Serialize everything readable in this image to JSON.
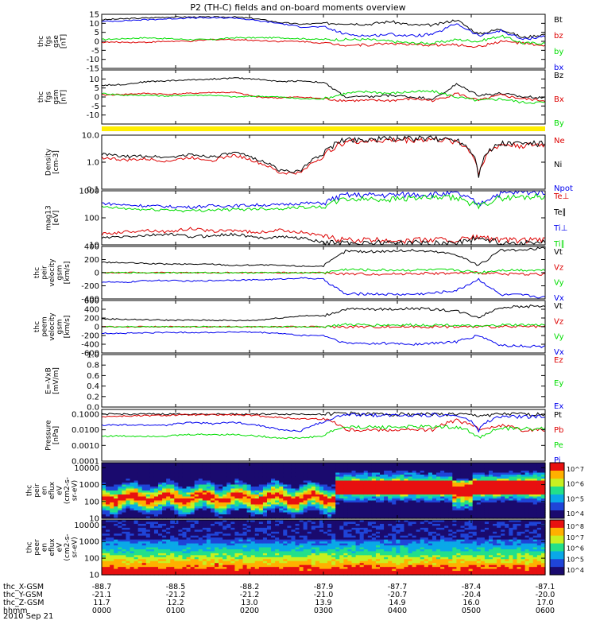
{
  "title": "P2 (TH-C) fields and on-board moments overview",
  "date": "2010 Sep 21",
  "colors": {
    "black": "#000000",
    "red": "#dd0000",
    "green": "#00dd00",
    "blue": "#0000ee",
    "yellow": "#ffee00"
  },
  "chart_data": [
    {
      "type": "line",
      "id": "fgs_gse",
      "ylabel": [
        "thc",
        "fgs",
        "gse",
        "[nT]"
      ],
      "ylim": [
        -15,
        15
      ],
      "yticks": [
        15,
        10,
        5,
        0,
        -5,
        -10,
        -15
      ],
      "tick_labels": [
        "15",
        "10",
        "5",
        "0",
        "-5",
        "-10",
        "-15"
      ],
      "series": [
        {
          "name": "Bt",
          "color": "black",
          "values": [
            12,
            12.5,
            13,
            13.5,
            13.5,
            13.5,
            13.5,
            12.5,
            10.5,
            9.5,
            10,
            10,
            9.5,
            11,
            9,
            9,
            12,
            4,
            7,
            2,
            4
          ]
        },
        {
          "name": "bz",
          "color": "red",
          "values": [
            -0.5,
            -0.5,
            -0.5,
            0,
            0,
            1,
            1,
            0.5,
            0,
            0,
            -1,
            -2,
            -2,
            -1,
            -2,
            -2,
            -2,
            -3,
            0,
            -1,
            -3
          ]
        },
        {
          "name": "by",
          "color": "green",
          "values": [
            1,
            1.5,
            2,
            1.5,
            1,
            1,
            2,
            2,
            2,
            1.5,
            1,
            1,
            1,
            0,
            -1,
            -1,
            1,
            0,
            3,
            -1,
            -1
          ]
        },
        {
          "name": "bx",
          "color": "blue",
          "values": [
            11,
            11.5,
            12,
            12.5,
            13,
            13,
            13,
            11.5,
            10,
            8,
            8,
            4,
            3,
            4,
            3,
            4,
            10,
            3,
            6,
            1,
            3
          ]
        }
      ]
    },
    {
      "type": "line",
      "id": "fgs_gsm",
      "ylabel": [
        "thc",
        "fgs",
        "gsm",
        "[nT]"
      ],
      "ylim": [
        -15,
        15
      ],
      "yticks": [
        10,
        5,
        0,
        -5,
        -10
      ],
      "tick_labels": [
        "10",
        "5",
        "0",
        "-5",
        "-10"
      ],
      "series": [
        {
          "name": "Bz",
          "color": "black",
          "values": [
            6.5,
            7,
            8.5,
            9,
            9.5,
            10,
            10.5,
            10,
            8.5,
            9,
            8,
            0,
            0,
            1,
            0,
            -1,
            7,
            1,
            2,
            0,
            0
          ]
        },
        {
          "name": "Bx",
          "color": "red",
          "values": [
            1,
            1.5,
            2,
            1.5,
            2,
            2.5,
            2.5,
            0,
            -0.5,
            0,
            -1,
            -2,
            -2,
            -2,
            -1,
            -2,
            2,
            -2,
            1,
            -1,
            -2
          ]
        },
        {
          "name": "By",
          "color": "green",
          "values": [
            2,
            1,
            1,
            0.5,
            1,
            1,
            0,
            0.5,
            0,
            -1,
            -1,
            2,
            3,
            2,
            3,
            3,
            0,
            -2,
            -1,
            -3,
            -3
          ]
        }
      ]
    },
    {
      "type": "line",
      "id": "density",
      "ylabel": [
        "Density",
        "[cm-3]"
      ],
      "ylim": [
        0.1,
        10
      ],
      "scale": "log",
      "yticks": [
        10,
        1,
        0.1
      ],
      "tick_labels": [
        "10.0",
        "1.0",
        "0.1"
      ],
      "series": [
        {
          "name": "Ne",
          "color": "red",
          "values": [
            1.5,
            1.2,
            1.3,
            1.1,
            1.5,
            1.2,
            1.8,
            1,
            0.4,
            0.4,
            1.5,
            6,
            6,
            6.5,
            6.8,
            7,
            6,
            0.3,
            4.5,
            4.2,
            4.5
          ]
        },
        {
          "name": "Ni",
          "color": "black",
          "values": [
            2,
            1.6,
            1.7,
            1.5,
            1.9,
            1.6,
            2.2,
            1.3,
            0.5,
            0.45,
            2,
            7,
            7,
            7.5,
            7.5,
            7.5,
            7,
            0.35,
            5,
            5,
            5
          ]
        },
        {
          "name": "Npot",
          "color": "blue",
          "values": []
        }
      ]
    },
    {
      "type": "line",
      "id": "mag_temp",
      "ylabel": [
        "mag13",
        "[eV]"
      ],
      "ylim": [
        10,
        1000
      ],
      "scale": "log",
      "yticks": [
        1000,
        100,
        10
      ],
      "tick_labels": [
        "1000",
        "100",
        "10"
      ],
      "series": [
        {
          "name": "Te⊥",
          "color": "red",
          "values": [
            25,
            30,
            35,
            30,
            40,
            32,
            35,
            28,
            35,
            30,
            20,
            15,
            15,
            15,
            15,
            16,
            15,
            20,
            15,
            15,
            15
          ]
        },
        {
          "name": "Te∥",
          "color": "black",
          "values": [
            18,
            20,
            22,
            25,
            20,
            22,
            25,
            18,
            20,
            18,
            12,
            12,
            12,
            12,
            12,
            12,
            12,
            18,
            12,
            12,
            12
          ]
        },
        {
          "name": "Ti⊥",
          "color": "blue",
          "values": [
            350,
            300,
            280,
            260,
            250,
            280,
            280,
            300,
            300,
            350,
            350,
            700,
            700,
            700,
            750,
            750,
            800,
            300,
            800,
            900,
            950
          ]
        },
        {
          "name": "Ti∥",
          "color": "green",
          "values": [
            250,
            220,
            200,
            200,
            180,
            200,
            200,
            220,
            220,
            250,
            250,
            500,
            500,
            500,
            550,
            550,
            550,
            250,
            550,
            600,
            650
          ]
        }
      ]
    },
    {
      "type": "line",
      "id": "peir_vel",
      "ylabel": [
        "thc",
        "peir",
        "velocity",
        "gsm",
        "[km/s]"
      ],
      "ylim": [
        -400,
        400
      ],
      "yticks": [
        400,
        200,
        0,
        -200,
        -400
      ],
      "tick_labels": [
        "400",
        "200",
        "0",
        "-200",
        "-400"
      ],
      "series": [
        {
          "name": "Vt",
          "color": "black",
          "values": [
            160,
            150,
            140,
            130,
            130,
            130,
            110,
            120,
            110,
            100,
            100,
            330,
            320,
            330,
            340,
            320,
            280,
            110,
            340,
            340,
            380
          ]
        },
        {
          "name": "Vz",
          "color": "red",
          "values": [
            0,
            0,
            0,
            0,
            0,
            0,
            0,
            0,
            0,
            0,
            0,
            -20,
            -20,
            -20,
            -10,
            -10,
            -10,
            0,
            -20,
            -20,
            -20
          ]
        },
        {
          "name": "Vy",
          "color": "green",
          "values": [
            0,
            0,
            0,
            0,
            0,
            0,
            0,
            0,
            0,
            0,
            0,
            50,
            40,
            40,
            40,
            40,
            40,
            0,
            40,
            40,
            40
          ]
        },
        {
          "name": "Vx",
          "color": "blue",
          "values": [
            -140,
            -150,
            -120,
            -120,
            -130,
            -120,
            -110,
            -110,
            -100,
            -80,
            -100,
            -330,
            -320,
            -330,
            -330,
            -310,
            -270,
            -100,
            -340,
            -340,
            -380
          ]
        }
      ]
    },
    {
      "type": "line",
      "id": "peem_vel",
      "ylabel": [
        "thc",
        "peem",
        "velocity",
        "gsm",
        "[km/s]"
      ],
      "ylim": [
        -600,
        600
      ],
      "yticks": [
        600,
        400,
        200,
        0,
        -200,
        -400,
        -600
      ],
      "tick_labels": [
        "600",
        "400",
        "200",
        "0",
        "-200",
        "-400",
        "-600"
      ],
      "series": [
        {
          "name": "Vt",
          "color": "black",
          "values": [
            180,
            170,
            160,
            150,
            150,
            150,
            140,
            150,
            200,
            250,
            250,
            400,
            400,
            400,
            420,
            400,
            360,
            220,
            450,
            460,
            480
          ]
        },
        {
          "name": "Vz",
          "color": "red",
          "values": [
            0,
            0,
            0,
            0,
            0,
            0,
            0,
            0,
            0,
            0,
            0,
            0,
            0,
            0,
            0,
            0,
            0,
            0,
            0,
            0,
            0
          ]
        },
        {
          "name": "Vy",
          "color": "green",
          "values": [
            0,
            0,
            0,
            0,
            0,
            0,
            0,
            0,
            0,
            0,
            0,
            50,
            40,
            40,
            40,
            40,
            40,
            0,
            40,
            40,
            40
          ]
        },
        {
          "name": "Vx",
          "color": "blue",
          "values": [
            -150,
            -150,
            -140,
            -130,
            -130,
            -130,
            -120,
            -130,
            -150,
            -200,
            -200,
            -380,
            -380,
            -380,
            -400,
            -380,
            -340,
            -200,
            -430,
            -440,
            -460
          ]
        }
      ]
    },
    {
      "type": "line",
      "id": "efield",
      "ylabel": [
        "E=-VxB",
        "[mV/m]"
      ],
      "ylim": [
        0,
        1
      ],
      "yticks": [
        1.0,
        0.8,
        0.6,
        0.4,
        0.2,
        0.0
      ],
      "tick_labels": [
        "1.0",
        "0.8",
        "0.6",
        "0.4",
        "0.2",
        "0.0"
      ],
      "series": [
        {
          "name": "Ez",
          "color": "red",
          "values": []
        },
        {
          "name": "Ey",
          "color": "green",
          "values": []
        },
        {
          "name": "Ex",
          "color": "blue",
          "values": []
        }
      ]
    },
    {
      "type": "line",
      "id": "pressure",
      "ylabel": [
        "Pressure",
        "[nPa]"
      ],
      "ylim": [
        0.0001,
        0.2
      ],
      "scale": "log",
      "yticks": [
        0.1,
        0.01,
        0.001,
        0.0001
      ],
      "tick_labels": [
        "0.1000",
        "0.0100",
        "0.0010",
        "0.0001"
      ],
      "series": [
        {
          "name": "Pt",
          "color": "black",
          "values": [
            0.1,
            0.1,
            0.1,
            0.1,
            0.1,
            0.1,
            0.1,
            0.1,
            0.1,
            0.1,
            0.1,
            0.12,
            0.1,
            0.1,
            0.1,
            0.1,
            0.1,
            0.08,
            0.1,
            0.1,
            0.1
          ]
        },
        {
          "name": "Pb",
          "color": "red",
          "values": [
            0.07,
            0.075,
            0.08,
            0.085,
            0.09,
            0.09,
            0.09,
            0.08,
            0.06,
            0.05,
            0.05,
            0.01,
            0.01,
            0.01,
            0.01,
            0.01,
            0.04,
            0.01,
            0.02,
            0.01,
            0.01
          ]
        },
        {
          "name": "Pe",
          "color": "green",
          "values": [
            0.004,
            0.004,
            0.004,
            0.004,
            0.005,
            0.005,
            0.005,
            0.004,
            0.003,
            0.003,
            0.004,
            0.015,
            0.015,
            0.015,
            0.016,
            0.016,
            0.015,
            0.003,
            0.012,
            0.012,
            0.012
          ]
        },
        {
          "name": "Pi",
          "color": "blue",
          "values": [
            0.02,
            0.02,
            0.02,
            0.02,
            0.03,
            0.025,
            0.03,
            0.02,
            0.01,
            0.008,
            0.03,
            0.09,
            0.09,
            0.09,
            0.09,
            0.09,
            0.08,
            0.008,
            0.07,
            0.07,
            0.07
          ]
        }
      ]
    },
    {
      "type": "heatmap",
      "id": "peir_spec",
      "ylabel": [
        "thc",
        "peir",
        "en",
        "eflux",
        "eV",
        "(cm2-s-",
        "sr-eV)"
      ],
      "ylim": [
        10,
        20000
      ],
      "scale": "log",
      "yticks": [
        10000,
        1000,
        100,
        10
      ],
      "tick_labels": [
        "10000",
        "1000",
        "100",
        "10"
      ],
      "colorbar": {
        "ticks": [
          "10^7",
          "10^6",
          "10^5",
          "10^4"
        ]
      }
    },
    {
      "type": "heatmap",
      "id": "peer_spec",
      "ylabel": [
        "thc",
        "peer",
        "en",
        "eflux",
        "eV",
        "(cm2-s-",
        "sr-eV)"
      ],
      "ylim": [
        10,
        20000
      ],
      "scale": "log",
      "yticks": [
        10000,
        1000,
        100,
        10
      ],
      "tick_labels": [
        "10000",
        "1000",
        "100",
        "10"
      ],
      "colorbar": {
        "ticks": [
          "10^8",
          "10^7",
          "10^6",
          "10^5",
          "10^4"
        ]
      }
    }
  ],
  "ephemeris": {
    "rows": [
      {
        "label": "thc_X-GSM",
        "values": [
          "-88.7",
          "-88.5",
          "-88.2",
          "-87.9",
          "-87.7",
          "-87.4",
          "-87.1"
        ]
      },
      {
        "label": "thc_Y-GSM",
        "values": [
          "-21.1",
          "-21.2",
          "-21.2",
          "-21.0",
          "-20.7",
          "-20.4",
          "-20.0"
        ]
      },
      {
        "label": "thc_Z-GSM",
        "values": [
          "11.7",
          "12.2",
          "13.0",
          "13.9",
          "14.9",
          "16.0",
          "17.0"
        ]
      },
      {
        "label": "hhmm",
        "values": [
          "0000",
          "0100",
          "0200",
          "0300",
          "0400",
          "0500",
          "0600"
        ]
      }
    ]
  }
}
